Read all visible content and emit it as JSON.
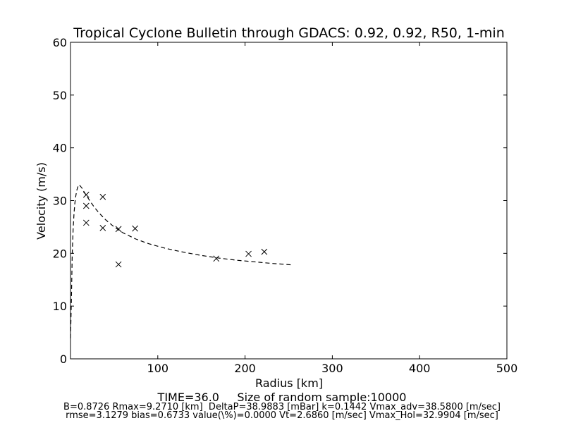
{
  "chart_data": {
    "type": "scatter",
    "title": "Tropical Cyclone Bulletin through GDACS: 0.92, 0.92, R50, 1-min",
    "xlabel": "Radius [km]",
    "ylabel": "Velocity (m/s)",
    "xlim": [
      0,
      500
    ],
    "ylim": [
      0,
      60
    ],
    "xticks": [
      100,
      200,
      300,
      400,
      500
    ],
    "yticks": [
      0,
      10,
      20,
      30,
      40,
      50,
      60
    ],
    "grid": false,
    "series": [
      {
        "style": "markers-x",
        "points": [
          [
            18,
            31.1
          ],
          [
            18,
            29.0
          ],
          [
            18,
            25.8
          ],
          [
            37,
            30.7
          ],
          [
            37,
            24.8
          ],
          [
            55,
            24.6
          ],
          [
            55,
            17.9
          ],
          [
            74,
            24.7
          ],
          [
            167,
            19.0
          ],
          [
            204,
            19.9
          ],
          [
            222,
            20.3
          ]
        ]
      },
      {
        "style": "dashed-line",
        "points": [
          [
            0,
            3.9
          ],
          [
            1,
            11
          ],
          [
            2,
            20
          ],
          [
            3,
            24.5
          ],
          [
            4,
            27.5
          ],
          [
            5,
            29.5
          ],
          [
            6,
            30.8
          ],
          [
            7,
            31.8
          ],
          [
            8,
            32.4
          ],
          [
            9.27,
            32.99
          ],
          [
            11,
            32.8
          ],
          [
            13,
            32.4
          ],
          [
            15,
            31.8
          ],
          [
            18,
            31.0
          ],
          [
            22,
            30.0
          ],
          [
            27,
            28.8
          ],
          [
            33,
            27.6
          ],
          [
            40,
            26.4
          ],
          [
            50,
            25.0
          ],
          [
            60,
            23.9
          ],
          [
            75,
            22.7
          ],
          [
            90,
            21.8
          ],
          [
            110,
            20.9
          ],
          [
            130,
            20.2
          ],
          [
            150,
            19.6
          ],
          [
            170,
            19.1
          ],
          [
            190,
            18.7
          ],
          [
            210,
            18.4
          ],
          [
            230,
            18.1
          ],
          [
            255,
            17.8
          ]
        ]
      }
    ]
  },
  "footer": {
    "line1": "TIME=36.0     Size of random sample:10000",
    "line2": "B=0.8726 Rmax=9.2710 [km]  DeltaP=38.9883 [mBar] k=0.1442 Vmax_adv=38.5800 [m/sec]",
    "line3": "rmse=3.1279 bias=0.6733 value(\\%)=0.0000 Vt=2.6860 [m/sec] Vmax_Hol=32.9904 [m/sec]"
  }
}
